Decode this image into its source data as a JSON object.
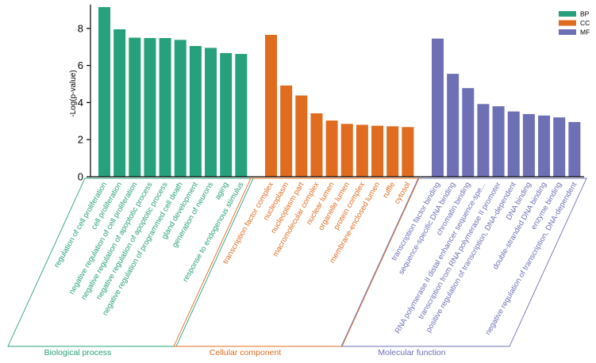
{
  "chart_data": {
    "type": "bar",
    "ylabel": "-Log(p-value)",
    "ylim": [
      0,
      9.2
    ],
    "yticks": [
      0,
      2,
      4,
      6,
      8
    ],
    "series": [
      {
        "name": "BP",
        "group_label": "Biological process",
        "color": "#27a17b",
        "label_color": "#27a17b",
        "categories": [
          "regulation of cell proliferation",
          "cell proliferation",
          "negative regulation of cell proliferation",
          "negative regulation of apoptotic process",
          "negative regulation of apoptotic process",
          "negative regulation of programmed cell death",
          "gland development",
          "generation of neurons",
          "aging",
          "response to endogenous stimulus"
        ],
        "values": [
          9.15,
          7.95,
          7.5,
          7.48,
          7.48,
          7.38,
          7.05,
          6.95,
          6.67,
          6.62
        ]
      },
      {
        "name": "CC",
        "group_label": "Cellular component",
        "color": "#e06c1f",
        "label_color": "#e06c1f",
        "categories": [
          "transcription factor complex",
          "nucleoplasm",
          "nucleoplasm part",
          "macromolecular complex",
          "nuclear lumen",
          "organelle lumen",
          "protein complex",
          "membrane-enclosed lumen",
          "ruffle",
          "cytosol"
        ],
        "values": [
          7.65,
          4.92,
          4.38,
          3.42,
          3.03,
          2.85,
          2.8,
          2.75,
          2.72,
          2.68
        ]
      },
      {
        "name": "MF",
        "group_label": "Molecular function",
        "color": "#6e70b6",
        "label_color": "#6e70b6",
        "categories": [
          "transcription factor binding",
          "sequence-specific DNA binding",
          "chromatin binding",
          "RNA polymerase II distal enhancer sequence-spe...",
          "transcription from RNA polymerase II promoter",
          "positive regulation of transcription, DNA-dependent",
          "DNA binding",
          "double-stranded DNA binding",
          "enzyme binding",
          "negative regulation of transcription, DNA-dependent"
        ],
        "values": [
          7.45,
          5.55,
          4.78,
          3.92,
          3.8,
          3.52,
          3.38,
          3.3,
          3.2,
          2.95
        ]
      }
    ],
    "legend": {
      "placement": "top-right",
      "entries": [
        "BP",
        "CC",
        "MF"
      ]
    }
  }
}
